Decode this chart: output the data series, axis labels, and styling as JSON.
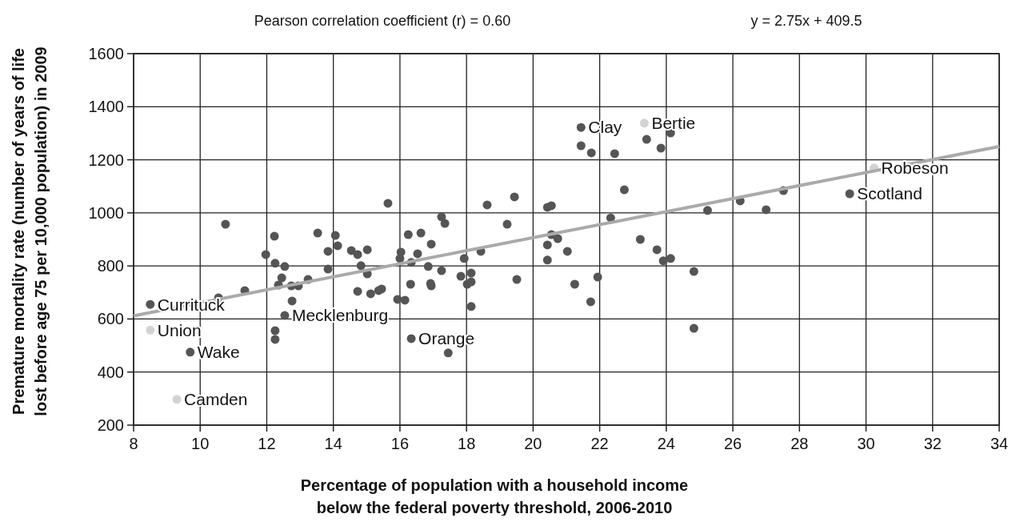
{
  "chart_data": {
    "type": "scatter",
    "xlabel": "Percentage of population with a household income below the federal poverty threshold, 2006-2010",
    "ylabel": "Premature mortality rate (number of years of life lost before age 75 per 10,000 population) in 2009",
    "annotations": [
      "Pearson correlation coefficient (r) = 0.60",
      "y = 2.75x + 409.5",
      {
        "text": "Currituck",
        "x": 8.5,
        "y": 655
      },
      {
        "text": "Union",
        "x": 8.5,
        "y": 558
      },
      {
        "text": "Wake",
        "x": 9.7,
        "y": 475
      },
      {
        "text": "Camden",
        "x": 9.3,
        "y": 297
      },
      {
        "text": "Mecklenburg",
        "x": 12.54,
        "y": 613
      },
      {
        "text": "Orange",
        "x": 16.34,
        "y": 526
      },
      {
        "text": "Clay",
        "x": 21.44,
        "y": 1322
      },
      {
        "text": "Bertie",
        "x": 23.34,
        "y": 1338
      },
      {
        "text": "Robeson",
        "x": 30.24,
        "y": 1169
      },
      {
        "text": "Scotland",
        "x": 29.51,
        "y": 1072
      }
    ],
    "xlim": [
      8,
      34
    ],
    "xticks": [
      8,
      10,
      12,
      14,
      16,
      18,
      20,
      22,
      24,
      26,
      28,
      30,
      32,
      34
    ],
    "ylim": [
      200,
      1600
    ],
    "yticks": [
      200,
      400,
      600,
      800,
      1000,
      1200,
      1400,
      1600
    ],
    "grid": true,
    "marker": "circle",
    "series": [
      {
        "color": "#555555",
        "x": [
          8.5,
          9.7,
          10.55,
          11.34,
          10.76,
          12.23,
          11.97,
          12.25,
          12.54,
          12.45,
          12.35,
          12.74,
          12.95,
          13.24,
          12.76,
          12.54,
          12.25,
          12.25,
          13.53,
          14.06,
          14.13,
          13.84,
          13.84,
          14.54,
          14.73,
          15.02,
          14.83,
          15.02,
          14.73,
          15.12,
          15.36,
          15.45,
          15.64,
          16.03,
          16.0,
          16.25,
          16.63,
          16.53,
          16.34,
          16.32,
          15.93,
          16.15,
          16.34,
          18.62,
          19.44,
          17.25,
          17.35,
          19.22,
          16.94,
          16.85,
          17.25,
          16.92,
          16.94,
          17.93,
          18.43,
          17.83,
          18.14,
          18.02,
          18.14,
          18.14,
          17.45,
          19.51,
          20.43,
          20.55,
          20.55,
          20.74,
          20.43,
          20.43,
          21.03,
          21.25,
          21.44,
          21.44,
          21.75,
          22.45,
          23.41,
          23.84,
          24.13,
          22.74,
          22.33,
          23.22,
          23.72,
          23.91,
          24.13,
          24.83,
          24.83,
          21.94,
          21.73,
          25.24,
          26.22,
          27.0,
          27.52,
          29.51
        ],
        "values": [
          655,
          475,
          680,
          707,
          957,
          912,
          843,
          810,
          798,
          755,
          728,
          725,
          725,
          749,
          668,
          613,
          556,
          523,
          924,
          915,
          876,
          855,
          788,
          858,
          843,
          861,
          801,
          770,
          704,
          695,
          707,
          713,
          1036,
          852,
          828,
          918,
          924,
          846,
          813,
          731,
          674,
          671,
          526,
          1030,
          1060,
          985,
          960,
          957,
          882,
          798,
          782,
          734,
          725,
          828,
          855,
          761,
          773,
          731,
          740,
          647,
          472,
          749,
          1021,
          1027,
          918,
          903,
          879,
          822,
          855,
          731,
          1322,
          1253,
          1226,
          1223,
          1277,
          1244,
          1301,
          1087,
          981,
          900,
          861,
          819,
          828,
          779,
          565,
          758,
          665,
          1009,
          1045,
          1012,
          1084,
          1072
        ]
      },
      {
        "color": "#d3d3d3",
        "x": [
          8.5,
          9.3,
          23.34,
          30.24
        ],
        "values": [
          558,
          297,
          1338,
          1169
        ]
      },
      {
        "type": "line",
        "marker": "none",
        "color": "#aaaaaa",
        "x": [
          8,
          34
        ],
        "values": [
          612,
          1250
        ]
      }
    ]
  }
}
